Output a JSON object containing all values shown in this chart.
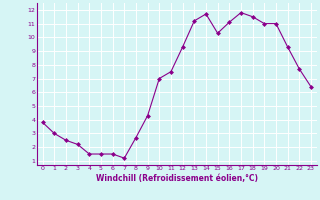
{
  "x": [
    0,
    1,
    2,
    3,
    4,
    5,
    6,
    7,
    8,
    9,
    10,
    11,
    12,
    13,
    14,
    15,
    16,
    17,
    18,
    19,
    20,
    21,
    22,
    23
  ],
  "y": [
    3.8,
    3.0,
    2.5,
    2.2,
    1.5,
    1.5,
    1.5,
    1.2,
    2.7,
    4.3,
    7.0,
    7.5,
    9.3,
    11.2,
    11.7,
    10.3,
    11.1,
    11.8,
    11.5,
    11.0,
    11.0,
    9.3,
    7.7,
    6.4
  ],
  "line_color": "#8B008B",
  "marker": "D",
  "marker_size": 2,
  "bg_color": "#d6f5f5",
  "grid_color": "#ffffff",
  "xlabel": "Windchill (Refroidissement éolien,°C)",
  "xlabel_color": "#8B008B",
  "tick_color": "#8B008B",
  "xlim": [
    -0.5,
    23.5
  ],
  "ylim": [
    0.7,
    12.5
  ],
  "yticks": [
    1,
    2,
    3,
    4,
    5,
    6,
    7,
    8,
    9,
    10,
    11,
    12
  ],
  "xticks": [
    0,
    1,
    2,
    3,
    4,
    5,
    6,
    7,
    8,
    9,
    10,
    11,
    12,
    13,
    14,
    15,
    16,
    17,
    18,
    19,
    20,
    21,
    22,
    23
  ]
}
